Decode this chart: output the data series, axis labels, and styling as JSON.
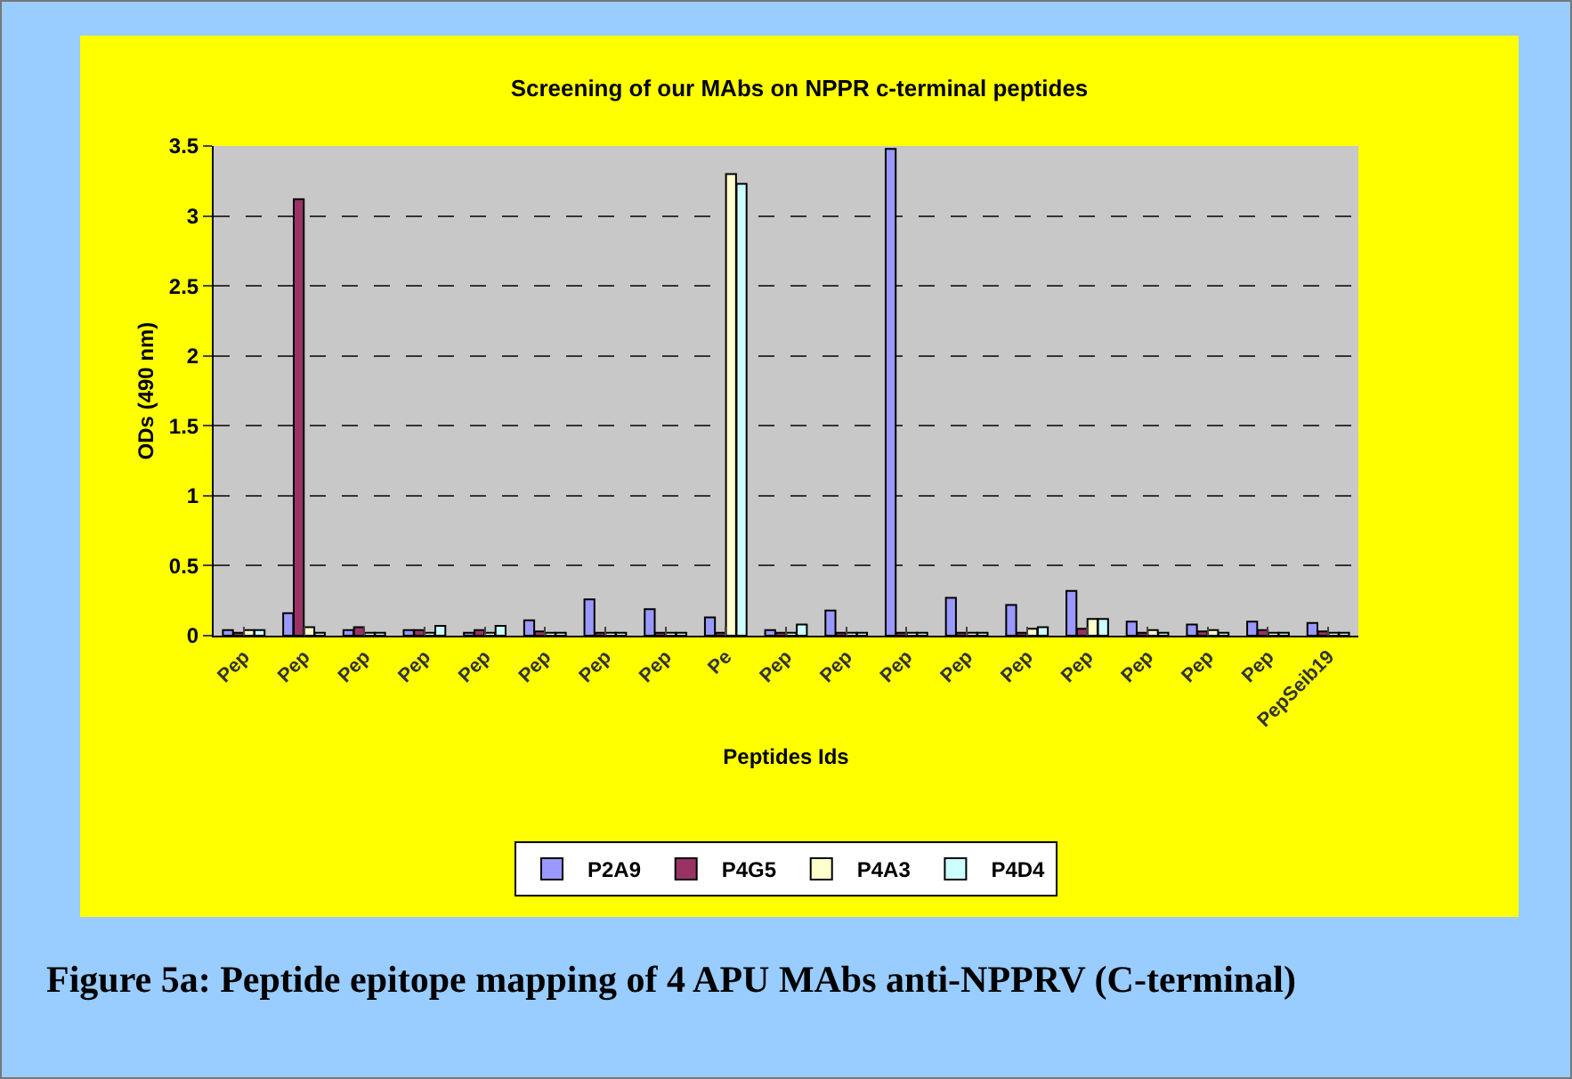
{
  "chart_data": {
    "type": "bar",
    "title": "Screening of our MAbs on NPPR c-terminal peptides",
    "xlabel": "Peptides Ids",
    "ylabel": "ODs (490 nm)",
    "categories": [
      "Pep",
      "Pep",
      "Pep",
      "Pep",
      "Pep",
      "Pep",
      "Pep",
      "Pep",
      "Pe",
      "Pep",
      "Pep",
      "Pep",
      "Pep",
      "Pep",
      "Pep",
      "Pep",
      "Pep",
      "Pep",
      "PepSeib19"
    ],
    "series": [
      {
        "name": "P2A9",
        "color": "#9999ff",
        "values": [
          0.04,
          0.16,
          0.04,
          0.04,
          0.02,
          0.11,
          0.26,
          0.19,
          0.13,
          0.04,
          0.18,
          3.48,
          0.27,
          0.22,
          0.32,
          0.1,
          0.08,
          0.1,
          0.09
        ]
      },
      {
        "name": "P4G5",
        "color": "#993366",
        "values": [
          0.02,
          3.12,
          0.06,
          0.04,
          0.04,
          0.03,
          0.02,
          0.02,
          0.02,
          0.02,
          0.02,
          0.02,
          0.02,
          0.02,
          0.05,
          0.02,
          0.03,
          0.04,
          0.03
        ]
      },
      {
        "name": "P4A3",
        "color": "#ffffcc",
        "values": [
          0.04,
          0.06,
          0.02,
          0.02,
          0.02,
          0.02,
          0.02,
          0.02,
          3.3,
          0.02,
          0.02,
          0.02,
          0.02,
          0.05,
          0.12,
          0.04,
          0.04,
          0.02,
          0.02
        ]
      },
      {
        "name": "P4D4",
        "color": "#ccffff",
        "values": [
          0.04,
          0.02,
          0.02,
          0.07,
          0.07,
          0.02,
          0.02,
          0.02,
          3.23,
          0.08,
          0.02,
          0.02,
          0.02,
          0.06,
          0.12,
          0.02,
          0.02,
          0.02,
          0.02
        ]
      }
    ],
    "ylim": [
      0,
      3.5
    ],
    "yticks": [
      0,
      0.5,
      1,
      1.5,
      2,
      2.5,
      3,
      3.5
    ],
    "grid": "y",
    "legend": "bottom",
    "annotations": [
      "Figure 5a: Peptide epitope mapping of 4 APU MAbs anti-NPPRV (C-terminal)"
    ]
  }
}
